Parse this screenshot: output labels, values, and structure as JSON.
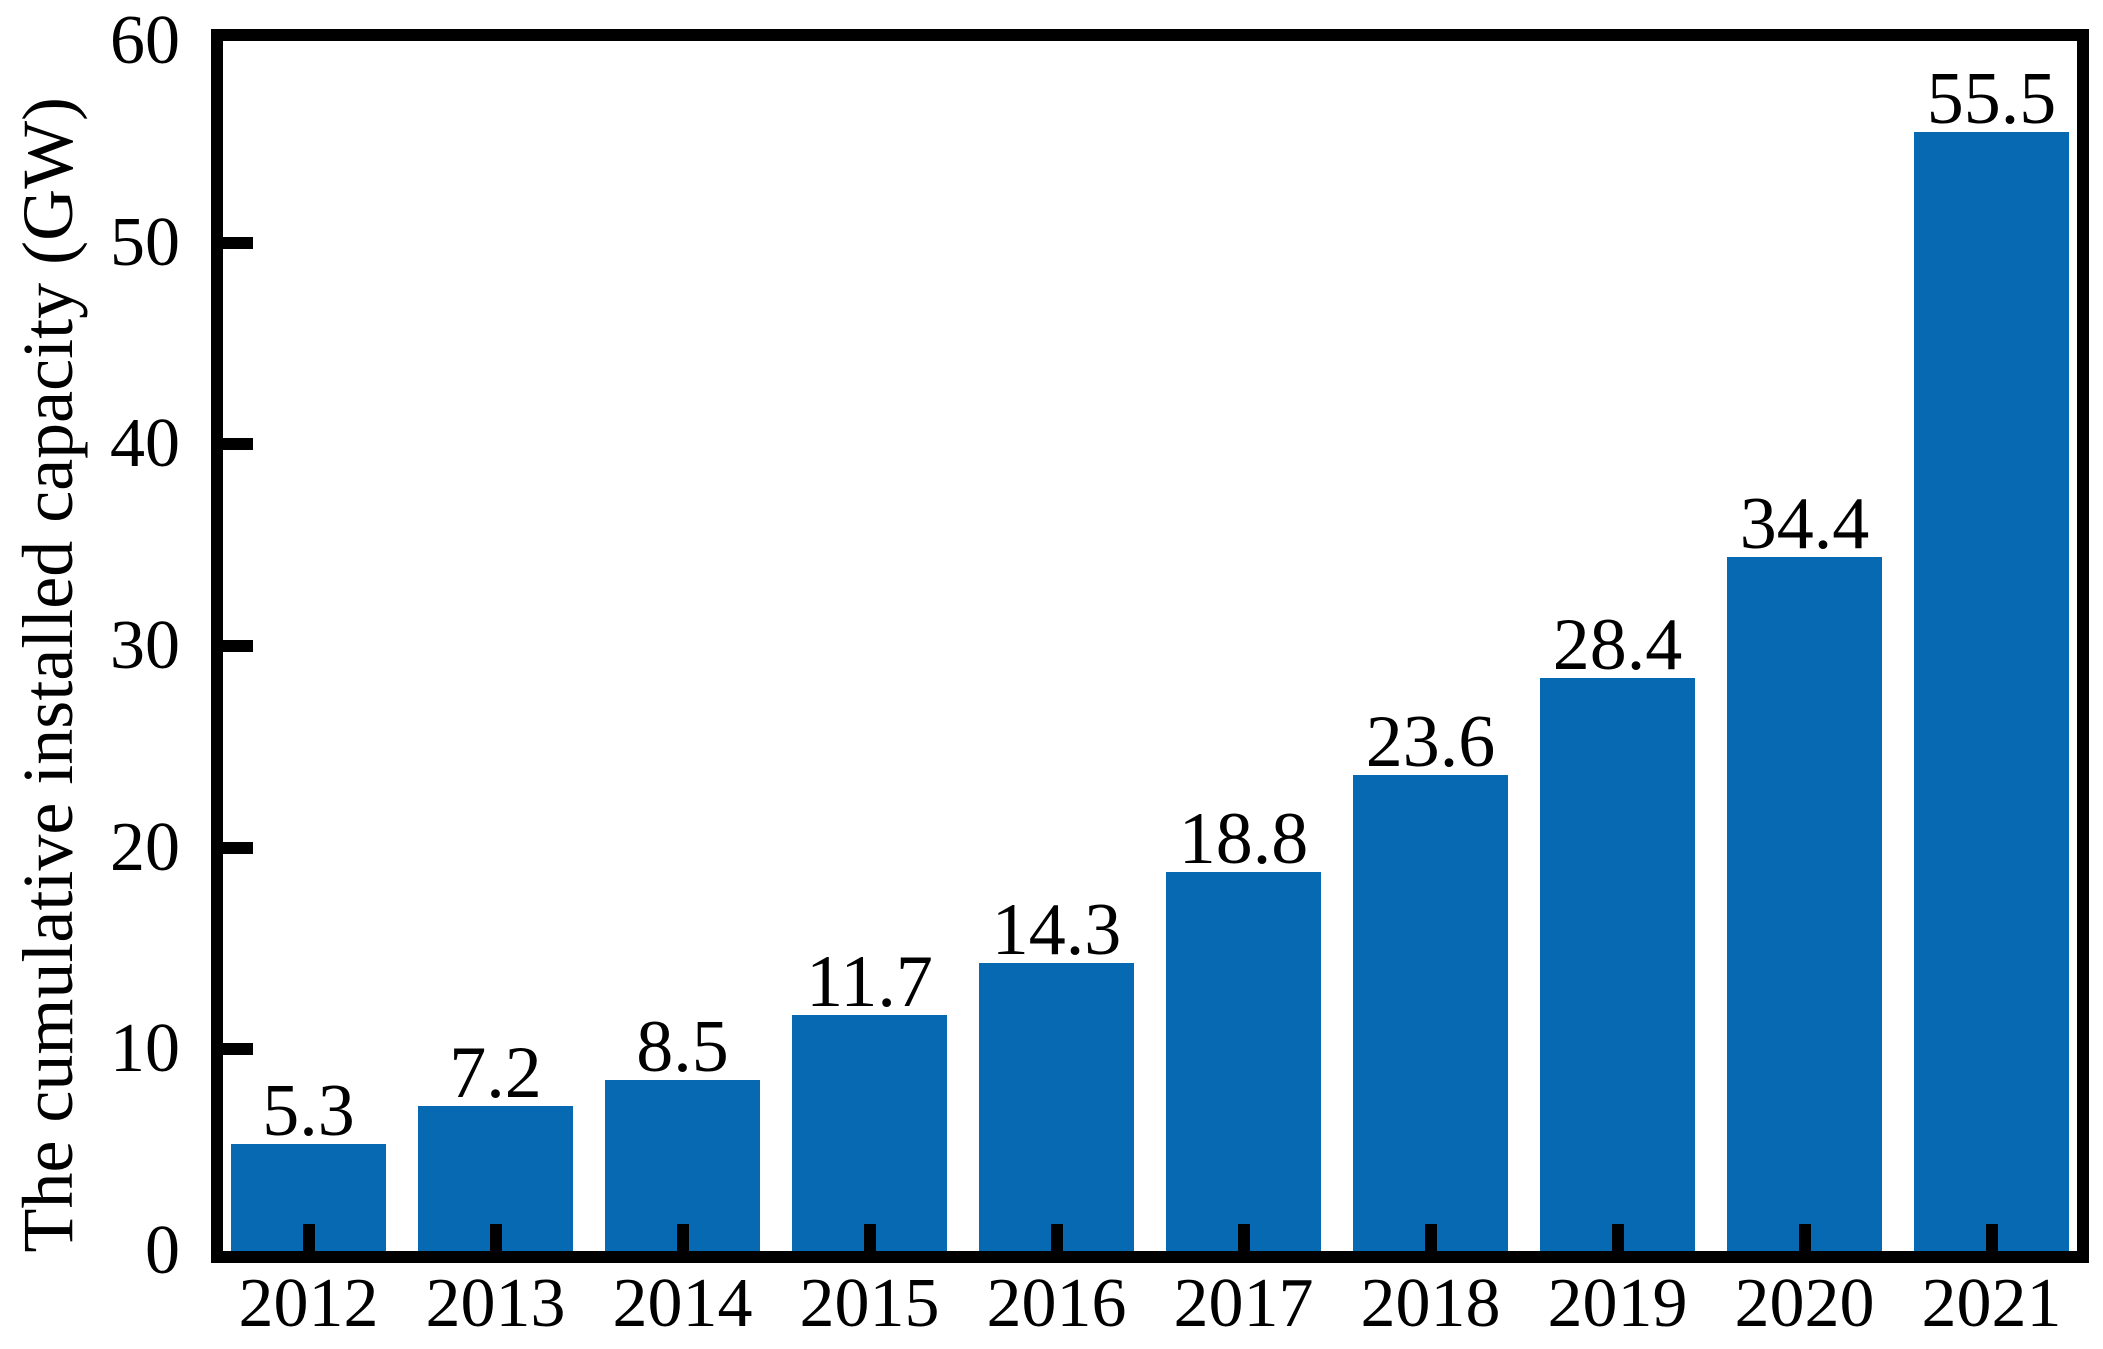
{
  "figure": {
    "background": "#ffffff"
  },
  "chart_data": {
    "type": "bar",
    "categories": [
      "2012",
      "2013",
      "2014",
      "2015",
      "2016",
      "2017",
      "2018",
      "2019",
      "2020",
      "2021"
    ],
    "values": [
      5.3,
      7.2,
      8.5,
      11.7,
      14.3,
      18.8,
      23.6,
      28.4,
      34.4,
      55.5
    ],
    "value_labels": [
      "5.3",
      "7.2",
      "8.5",
      "11.7",
      "14.3",
      "18.8",
      "23.6",
      "28.4",
      "34.4",
      "55.5"
    ],
    "title": "",
    "xlabel": "",
    "ylabel": "The cumulative installed capacity (GW)",
    "ylim": [
      0,
      60
    ],
    "yticks": [
      0,
      10,
      20,
      30,
      40,
      50,
      60
    ],
    "ytick_labels": [
      "0",
      "10",
      "20",
      "30",
      "40",
      "50",
      "60"
    ],
    "grid": false,
    "legend": "none",
    "bar_color": "#0669b2",
    "axis_color": "#000000",
    "text_color": "#000000"
  }
}
